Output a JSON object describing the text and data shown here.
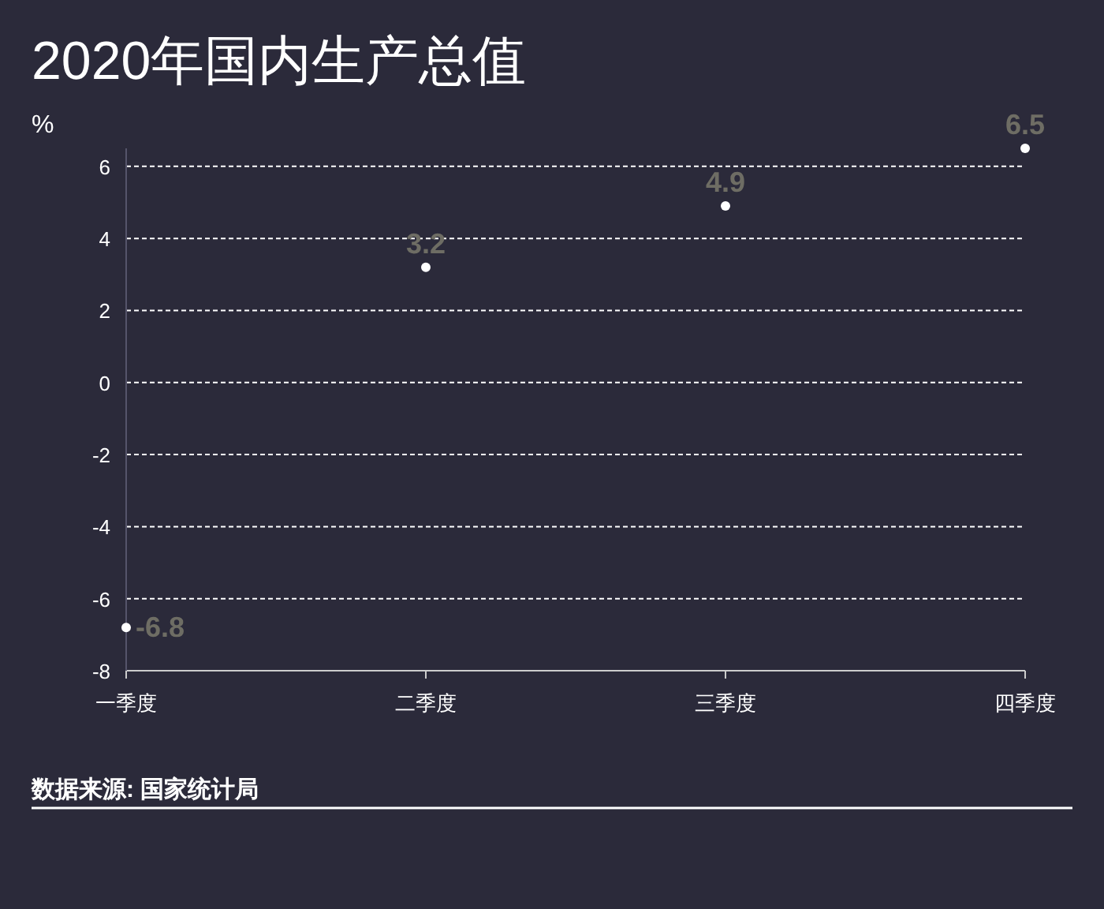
{
  "chart_data": {
    "type": "scatter",
    "title": "2020年国内生产总值",
    "ylabel": "%",
    "categories": [
      "一季度",
      "二季度",
      "三季度",
      "四季度"
    ],
    "values": [
      -6.8,
      3.2,
      4.9,
      6.5
    ],
    "color": "#ffffff",
    "marker": "circle",
    "data_labels": true,
    "ylim": [
      -8,
      6.5
    ],
    "yticks": [
      -8,
      -6,
      -4,
      -2,
      0,
      2,
      4,
      6
    ],
    "grid": "y",
    "annotations": [
      "数据来源: 国家统计局"
    ]
  }
}
